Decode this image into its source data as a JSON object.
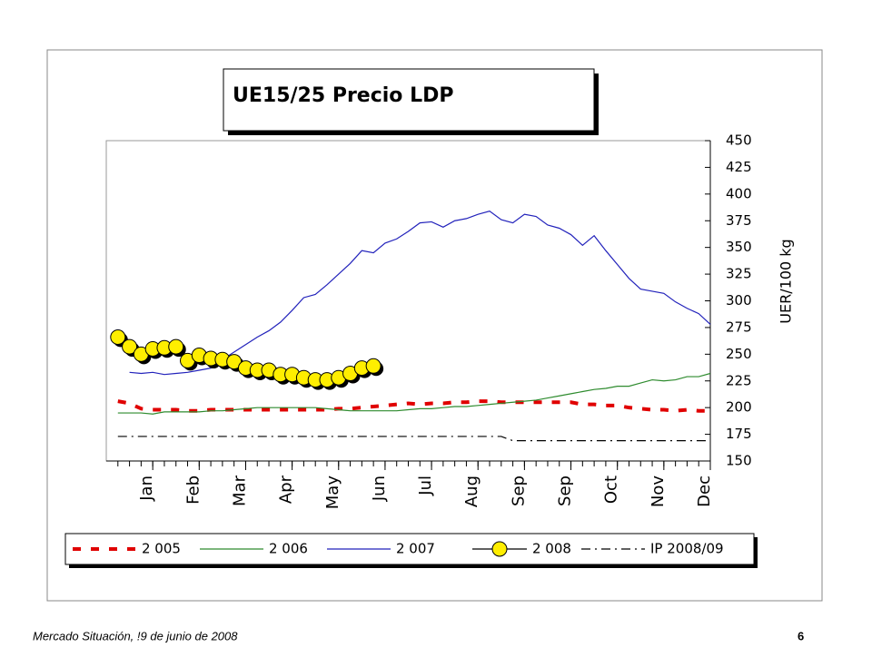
{
  "chart_data": {
    "type": "line",
    "title": "UE15/25 Precio LDP",
    "y_label": "UER/100 kg",
    "footer": "Mercado Situación, !9 de junio de 2008",
    "page_number": "6",
    "x": [
      1,
      2,
      3,
      4,
      5,
      6,
      7,
      8,
      9,
      10,
      11,
      12,
      13,
      14,
      15,
      16,
      17,
      18,
      19,
      20,
      21,
      22,
      23,
      24,
      25,
      26,
      27,
      28,
      29,
      30,
      31,
      32,
      33,
      34,
      35,
      36,
      37,
      38,
      39,
      40,
      41,
      42,
      43,
      44,
      45,
      46,
      47,
      48,
      49,
      50,
      51,
      52
    ],
    "xlim": [
      0,
      52
    ],
    "xticks": [
      {
        "value": 4,
        "label": "Jan"
      },
      {
        "value": 8,
        "label": "Feb"
      },
      {
        "value": 12,
        "label": "Mar"
      },
      {
        "value": 16,
        "label": "Apr"
      },
      {
        "value": 20,
        "label": "May"
      },
      {
        "value": 24,
        "label": "Jun"
      },
      {
        "value": 28,
        "label": "Jul"
      },
      {
        "value": 32,
        "label": "Aug"
      },
      {
        "value": 36,
        "label": "Sep"
      },
      {
        "value": 40,
        "label": "Sep"
      },
      {
        "value": 44,
        "label": "Oct"
      },
      {
        "value": 48,
        "label": "Nov"
      },
      {
        "value": 52,
        "label": "Dec"
      }
    ],
    "ylim": [
      150,
      450
    ],
    "yticks": [
      150,
      175,
      200,
      225,
      250,
      275,
      300,
      325,
      350,
      375,
      400,
      425,
      450
    ],
    "series": [
      {
        "name": "2 005",
        "color": "#e00000",
        "style": "dashed",
        "values": [
          206,
          204,
          199,
          198,
          198,
          198,
          197,
          197,
          198,
          198,
          198,
          198,
          198,
          198,
          198,
          198,
          198,
          198,
          198,
          199,
          199,
          200,
          201,
          202,
          203,
          204,
          203,
          204,
          204,
          205,
          205,
          206,
          206,
          205,
          205,
          205,
          205,
          205,
          205,
          205,
          203,
          203,
          202,
          202,
          200,
          199,
          198,
          198,
          197,
          198,
          197,
          197
        ]
      },
      {
        "name": "2 006",
        "color": "#2e8b2e",
        "style": "solid",
        "values": [
          195,
          195,
          195,
          194,
          196,
          196,
          196,
          196,
          197,
          197,
          198,
          199,
          200,
          200,
          200,
          200,
          200,
          200,
          199,
          198,
          197,
          197,
          197,
          197,
          197,
          198,
          199,
          199,
          200,
          201,
          201,
          202,
          203,
          204,
          205,
          206,
          207,
          209,
          211,
          213,
          215,
          217,
          218,
          220,
          220,
          223,
          226,
          225,
          226,
          229,
          229,
          232
        ]
      },
      {
        "name": "2 007",
        "color": "#2222bb",
        "style": "solid",
        "values": [
          null,
          233,
          232,
          233,
          231,
          232,
          233,
          235,
          237,
          245,
          252,
          259,
          266,
          272,
          280,
          291,
          303,
          306,
          315,
          325,
          335,
          347,
          345,
          354,
          358,
          365,
          373,
          374,
          369,
          375,
          377,
          381,
          384,
          376,
          373,
          381,
          379,
          371,
          368,
          362,
          352,
          361,
          347,
          334,
          321,
          311,
          309,
          307,
          299,
          293,
          288,
          278
        ]
      },
      {
        "name": "2 008",
        "color": "#ffee00",
        "style": "marker",
        "values": [
          266,
          257,
          250,
          255,
          256,
          257,
          244,
          249,
          246,
          245,
          243,
          237,
          235,
          235,
          231,
          231,
          228,
          226,
          226,
          228,
          232,
          237,
          239,
          null,
          null,
          null,
          null,
          null,
          null,
          null,
          null,
          null,
          null,
          null,
          null,
          null,
          null,
          null,
          null,
          null,
          null,
          null,
          null,
          null,
          null,
          null,
          null,
          null,
          null,
          null,
          null,
          null
        ]
      },
      {
        "name": "IP 2008/09",
        "color": "#000000",
        "style": "dashdot",
        "values": [
          173,
          173,
          173,
          173,
          173,
          173,
          173,
          173,
          173,
          173,
          173,
          173,
          173,
          173,
          173,
          173,
          173,
          173,
          173,
          173,
          173,
          173,
          173,
          173,
          173,
          173,
          173,
          173,
          173,
          173,
          173,
          173,
          173,
          173,
          169,
          169,
          169,
          169,
          169,
          169,
          169,
          169,
          169,
          169,
          169,
          169,
          169,
          169,
          169,
          169,
          169,
          169
        ]
      }
    ]
  }
}
